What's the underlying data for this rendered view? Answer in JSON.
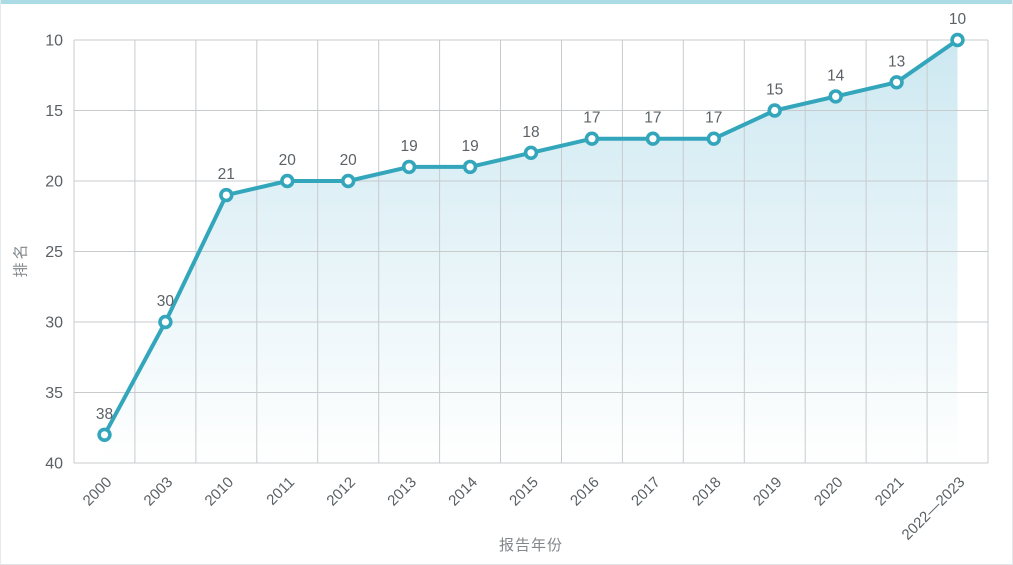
{
  "page": {
    "accent_bar_color": "#abdce6",
    "background": "#ffffff"
  },
  "chart_data": {
    "type": "line",
    "title": "",
    "xlabel": "报告年份",
    "ylabel": "排名",
    "categories": [
      "2000",
      "2003",
      "2010",
      "2011",
      "2012",
      "2013",
      "2014",
      "2015",
      "2016",
      "2017",
      "2018",
      "2019",
      "2020",
      "2021",
      "2022—2023"
    ],
    "values": [
      38,
      30,
      21,
      20,
      20,
      19,
      19,
      18,
      17,
      17,
      17,
      15,
      14,
      13,
      10
    ],
    "y_ticks": [
      10,
      15,
      20,
      25,
      30,
      35,
      40
    ],
    "ylim": [
      10,
      40
    ],
    "y_axis_inverted": true,
    "grid": true,
    "legend_position": "none",
    "data_labels": true,
    "line_color": "#33a6bb",
    "marker": "hollow-circle",
    "marker_fill": "#ffffff",
    "area_gradient_top": "#cde8f1",
    "area_gradient_bottom": "#ffffff",
    "gridline_color": "#c7cbcd",
    "label_color": "#5a6064"
  }
}
